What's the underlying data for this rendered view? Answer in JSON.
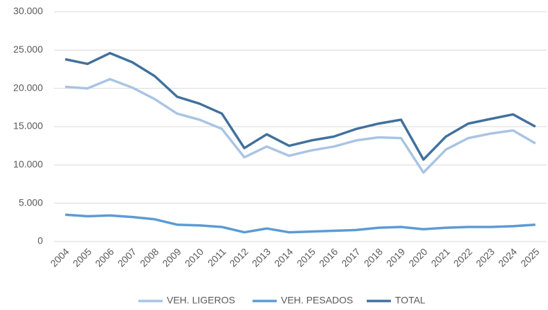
{
  "chart_data": {
    "type": "line",
    "categories": [
      "2004",
      "2005",
      "2006",
      "2007",
      "2008",
      "2009",
      "2010",
      "2011",
      "2012",
      "2013",
      "2014",
      "2015",
      "2016",
      "2017",
      "2018",
      "2019",
      "2020",
      "2021",
      "2022",
      "2023",
      "2024",
      "2025"
    ],
    "series": [
      {
        "name": "VEH. LIGEROS",
        "color": "#a9c4e4",
        "values": [
          20200,
          20000,
          21200,
          20100,
          18600,
          16700,
          15900,
          14700,
          11000,
          12400,
          11200,
          11900,
          12400,
          13200,
          13600,
          13500,
          9000,
          12000,
          13500,
          14100,
          14500,
          12800
        ]
      },
      {
        "name": "VEH. PESADOS",
        "color": "#5b9bd5",
        "values": [
          3500,
          3300,
          3400,
          3200,
          2900,
          2200,
          2100,
          1900,
          1200,
          1700,
          1200,
          1300,
          1400,
          1500,
          1800,
          1900,
          1600,
          1800,
          1900,
          1900,
          2000,
          2200
        ]
      },
      {
        "name": "TOTAL",
        "color": "#41719c",
        "values": [
          23800,
          23200,
          24600,
          23400,
          21600,
          18900,
          18000,
          16700,
          12200,
          14000,
          12500,
          13200,
          13700,
          14700,
          15400,
          15900,
          10700,
          13700,
          15400,
          16000,
          16600,
          15000
        ]
      }
    ],
    "ylim": [
      0,
      30000
    ],
    "yticks": [
      0,
      {
        "value": 5000,
        "label": "5.000"
      },
      {
        "value": 10000,
        "label": "10.000"
      },
      {
        "value": 15000,
        "label": "15.000"
      },
      {
        "value": 20000,
        "label": "20.000"
      },
      {
        "value": 25000,
        "label": "25.000"
      },
      {
        "value": 30000,
        "label": "30.000"
      }
    ],
    "grid": true,
    "legend": "bottom"
  }
}
